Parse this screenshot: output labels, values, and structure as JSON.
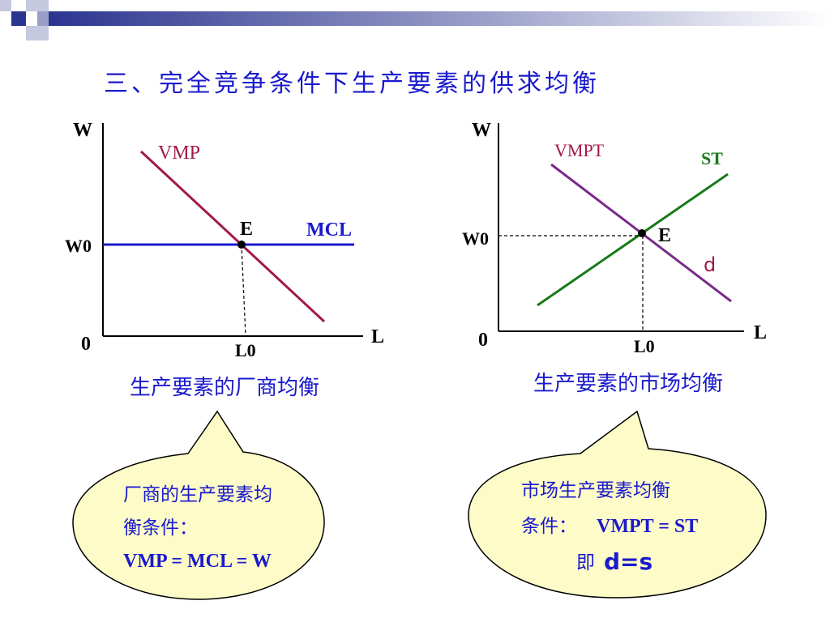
{
  "title": "三、完全竞争条件下生产要素的供求均衡",
  "colors": {
    "title": "#1a1acc",
    "vmp": "#a01a4a",
    "mcl": "#1a1acc",
    "supply": "#1a7a1a",
    "vmp_market": "#7a2a8a",
    "bubble_fill": "#fdfbc8"
  },
  "left_diagram": {
    "y_axis_label": "W",
    "x_axis_label": "L",
    "origin_label": "0",
    "wage_label": "W0",
    "quantity_label": "L0",
    "equilibrium_label": "E",
    "demand_label": "VMP",
    "cost_label": "MCL",
    "caption": "生产要素的厂商均衡"
  },
  "right_diagram": {
    "y_axis_label": "W",
    "x_axis_label": "L",
    "origin_label": "0",
    "wage_label": "W0",
    "quantity_label": "L0",
    "equilibrium_label": "E",
    "demand_label": "VMPT",
    "supply_label": "ST",
    "demand_small_label": "d",
    "caption": "生产要素的市场均衡"
  },
  "left_bubble": {
    "line1": "厂商的生产要素均",
    "line2": "衡条件：",
    "line3": "VMP = MCL = W"
  },
  "right_bubble": {
    "line1": "市场生产要素均衡",
    "line2_text": "条件：",
    "line2_formula": "VMPT = ST",
    "line3_prefix": "即",
    "line3_formula": "d=s"
  }
}
